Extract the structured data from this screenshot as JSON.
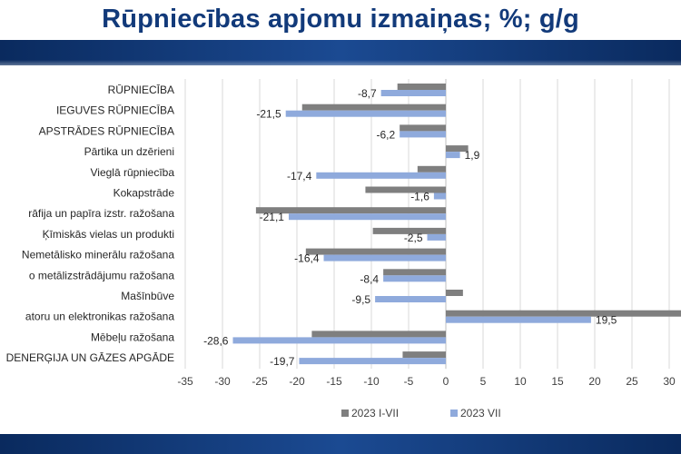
{
  "header": {
    "title": "Rūpniecības apjomu izmaiņas; %; g/g"
  },
  "colors": {
    "title": "#123a7a",
    "band": "#0d2f66",
    "series_1": "#7f7f7f",
    "series_2": "#8faadc",
    "gridline": "#d9d9d9",
    "axis": "#bfbfbf"
  },
  "chart_data": {
    "type": "bar",
    "orientation": "horizontal",
    "title": "",
    "xlabel": "",
    "ylabel": "",
    "xlim": [
      -35,
      30
    ],
    "x_ticks": [
      -35,
      -30,
      -25,
      -20,
      -15,
      -10,
      -5,
      0,
      5,
      10,
      15,
      20,
      25,
      30
    ],
    "grid": true,
    "legend_position": "bottom",
    "categories": [
      "RŪPNIECĪBA",
      "IEGUVES RŪPNIECĪBA",
      "APSTRĀDES RŪPNIECĪBA",
      "Pārtika un dzērieni",
      "Vieglā rūpniecība",
      "Kokapstrāde",
      "rāfija un papīra izstr. ražošana",
      "Ķīmiskās vielas un produkti",
      "Nemetālisko minerālu ražošana",
      "o metālizstrādājumu ražošana",
      "Mašīnbūve",
      "atoru un elektronikas ražošana",
      "Mēbeļu ražošana",
      "DENERĢIJA UN GĀZES APGĀDE"
    ],
    "series": [
      {
        "name": "2023 I-VII",
        "values": [
          -6.5,
          -19.3,
          -6.2,
          3.0,
          -3.8,
          -10.8,
          -25.5,
          -9.8,
          -18.8,
          -8.4,
          2.3,
          32.0,
          -18.0,
          -5.8
        ]
      },
      {
        "name": "2023 VII",
        "values": [
          -8.7,
          -21.5,
          -6.2,
          1.9,
          -17.4,
          -1.6,
          -21.1,
          -2.5,
          -16.4,
          -8.4,
          -9.5,
          19.5,
          -28.6,
          -19.7
        ]
      }
    ],
    "data_labels": [
      "-8,7",
      "-21,5",
      "-6,2",
      "1,9",
      "-17,4",
      "-1,6",
      "-21,1",
      "-2,5",
      "-16,4",
      "-8,4",
      "-9,5",
      "19,5",
      "-28,6",
      "-19,7"
    ]
  }
}
